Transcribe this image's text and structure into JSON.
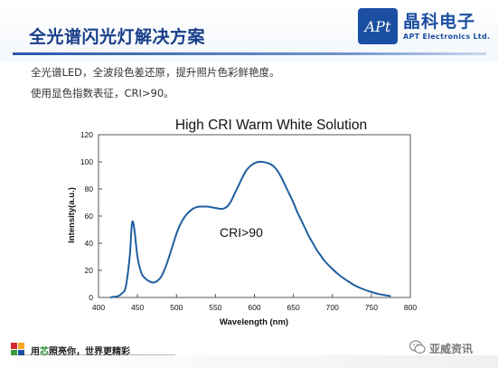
{
  "slide": {
    "title": "全光谱闪光灯解决方案",
    "desc_line1": "全光谱LED，全波段色差还原，提升照片色彩鲜艳度。",
    "desc_line2": "使用显色指数表征，CRI>90。"
  },
  "logo": {
    "mark": "APt",
    "name_cn": "晶科电子",
    "name_en": "APT Electronics Ltd."
  },
  "footer": {
    "slogan_prefix": "用",
    "slogan_accent": "芯",
    "slogan_rest": "照亮你，世界更精彩",
    "block_colors": [
      "#d9272e",
      "#f5a623",
      "#3a9b3f",
      "#1b4fa2"
    ]
  },
  "watermark": {
    "icon": "wechat-icon",
    "text": "亚威资讯"
  },
  "colors": {
    "title": "#1a3f8a",
    "curve": "#1f5f9f",
    "accent_green": "#1b8a2a"
  },
  "chart_data": {
    "type": "line",
    "title": "High CRI Warm White Solution",
    "xlabel": "Wavelength (nm)",
    "ylabel": "Intensity(a.u.)",
    "xlim": [
      400,
      800
    ],
    "ylim": [
      0,
      120
    ],
    "xticks": [
      400,
      450,
      500,
      550,
      600,
      650,
      700,
      750,
      800
    ],
    "yticks": [
      0,
      20,
      40,
      60,
      80,
      100,
      120
    ],
    "grid": false,
    "annotation": "CRI>90",
    "series": [
      {
        "x": [
          415,
          420,
          425,
          430,
          435,
          440,
          443,
          446,
          450,
          455,
          460,
          465,
          470,
          475,
          480,
          485,
          490,
          495,
          500,
          505,
          510,
          515,
          520,
          525,
          530,
          535,
          540,
          545,
          550,
          555,
          560,
          565,
          570,
          575,
          580,
          585,
          590,
          595,
          600,
          605,
          610,
          615,
          620,
          625,
          630,
          635,
          640,
          645,
          650,
          655,
          660,
          665,
          670,
          675,
          680,
          685,
          690,
          700,
          710,
          720,
          730,
          740,
          750,
          760,
          770,
          775
        ],
        "y": [
          0,
          0.5,
          1,
          3,
          8,
          30,
          55,
          50,
          30,
          18,
          14,
          12,
          11,
          12,
          15,
          21,
          29,
          38,
          47,
          54,
          59,
          62.5,
          65,
          66.5,
          67,
          67,
          67,
          66.5,
          66,
          65.5,
          65.5,
          67,
          71,
          77,
          83,
          89,
          94,
          97,
          99,
          100,
          100,
          99.5,
          98.5,
          96.5,
          93,
          88,
          82,
          76,
          70,
          63,
          57,
          51,
          45,
          40,
          35,
          31,
          27,
          21,
          16,
          12,
          8.5,
          6,
          4,
          2.5,
          1.5,
          1
        ]
      }
    ]
  }
}
